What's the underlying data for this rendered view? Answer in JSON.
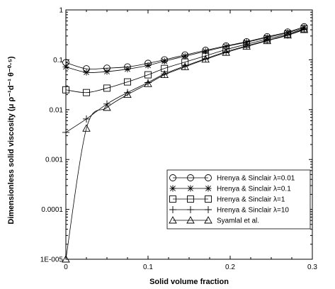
{
  "chart_data": {
    "type": "line",
    "xlabel": "Solid volume fraction",
    "ylabel": "Dimensionless solid viscosity  (μ ρ⁻¹d⁻¹ θ⁻⁰·⁵)",
    "xlim": [
      0,
      0.3
    ],
    "ylim": [
      1e-05,
      1
    ],
    "yscale": "log",
    "x_ticks": [
      "0",
      "0.1",
      "0.2",
      "0.3"
    ],
    "y_ticks": [
      "1E-005",
      "0.0001",
      "0.001",
      "0.01",
      "0.1",
      "1"
    ],
    "grid": false,
    "legend_position": "bottom-right",
    "series": [
      {
        "name": "Hrenya & Sinclair λ=0.01",
        "marker": "circle",
        "x": [
          0,
          0.025,
          0.05,
          0.075,
          0.1,
          0.12,
          0.145,
          0.17,
          0.195,
          0.22,
          0.245,
          0.27,
          0.29
        ],
        "y": [
          0.088,
          0.066,
          0.068,
          0.072,
          0.085,
          0.1,
          0.125,
          0.155,
          0.19,
          0.23,
          0.29,
          0.36,
          0.46
        ]
      },
      {
        "name": "Hrenya & Sinclair λ=0.1",
        "marker": "star",
        "x": [
          0,
          0.025,
          0.05,
          0.075,
          0.1,
          0.12,
          0.145,
          0.17,
          0.195,
          0.22,
          0.245,
          0.27,
          0.29
        ],
        "y": [
          0.072,
          0.056,
          0.058,
          0.065,
          0.077,
          0.094,
          0.118,
          0.148,
          0.185,
          0.225,
          0.28,
          0.35,
          0.44
        ]
      },
      {
        "name": "Hrenya & Sinclair λ=1",
        "marker": "square",
        "x": [
          0,
          0.025,
          0.05,
          0.075,
          0.1,
          0.12,
          0.145,
          0.17,
          0.195,
          0.22,
          0.245,
          0.27,
          0.29
        ],
        "y": [
          0.025,
          0.022,
          0.027,
          0.036,
          0.05,
          0.067,
          0.09,
          0.12,
          0.16,
          0.205,
          0.26,
          0.33,
          0.42
        ]
      },
      {
        "name": "Hrenya & Sinclair λ=10",
        "marker": "plus",
        "x": [
          0,
          0.025,
          0.05,
          0.075,
          0.1,
          0.12,
          0.145,
          0.17,
          0.195,
          0.22,
          0.245,
          0.27,
          0.29
        ],
        "y": [
          0.0035,
          0.0065,
          0.013,
          0.022,
          0.035,
          0.052,
          0.075,
          0.105,
          0.145,
          0.19,
          0.245,
          0.315,
          0.41
        ]
      },
      {
        "name": "Syamlal et al.",
        "marker": "triangle",
        "x": [
          0,
          0.025,
          0.05,
          0.075,
          0.1,
          0.12,
          0.145,
          0.17,
          0.195,
          0.22,
          0.245,
          0.27,
          0.29
        ],
        "y": [
          1e-05,
          0.0042,
          0.011,
          0.02,
          0.033,
          0.05,
          0.072,
          0.102,
          0.14,
          0.185,
          0.24,
          0.31,
          0.4
        ]
      }
    ]
  }
}
